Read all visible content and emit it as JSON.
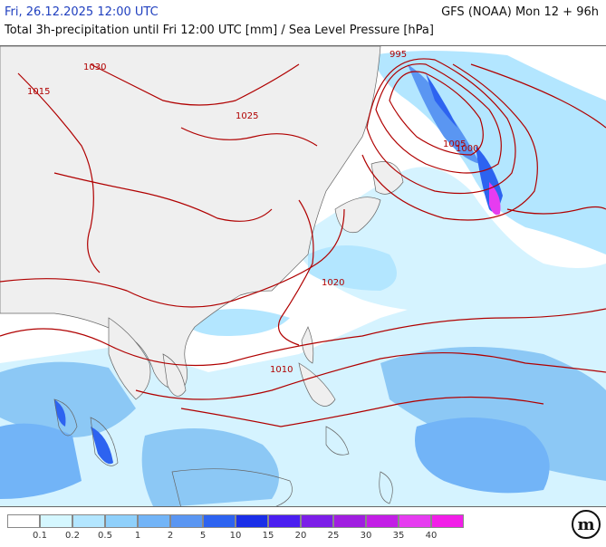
{
  "header": {
    "valid_time": "Fri, 26.12.2025 12:00 UTC",
    "model_run": "GFS (NOAA) Mon 12 + 96h",
    "description": "Total 3h-precipitation until Fri 12:00 UTC [mm] / Sea Level Pressure [hPa]"
  },
  "colors": {
    "land": "#efefef",
    "isobar": "#b00000",
    "coastline": "#666666",
    "precip_light": "#d5f3ff",
    "precip_medium": "#8cc8f5",
    "precip_heavy": "#2d63f0",
    "precip_extreme": "#e63cf0"
  },
  "isobar_labels": [
    {
      "text": "1015",
      "lon_index": 1
    },
    {
      "text": "1030"
    },
    {
      "text": "1025"
    },
    {
      "text": "1020"
    },
    {
      "text": "1010"
    },
    {
      "text": "1005"
    },
    {
      "text": "1000"
    },
    {
      "text": "995"
    }
  ],
  "legend": {
    "colors": [
      "#ffffff",
      "#d5f7ff",
      "#b3e6ff",
      "#8fd0fb",
      "#72b4f7",
      "#5a96f2",
      "#2d63f0",
      "#1a2ee8",
      "#4a1ef0",
      "#7c1ee8",
      "#a01ee0",
      "#c31ee6",
      "#e63cf0",
      "#f21ee8",
      "#c815b8"
    ],
    "ticks": [
      "0.1",
      "0.2",
      "0.5",
      "1",
      "2",
      "5",
      "10",
      "15",
      "20",
      "25",
      "30",
      "35",
      "40"
    ]
  },
  "logo": {
    "text": "m"
  }
}
